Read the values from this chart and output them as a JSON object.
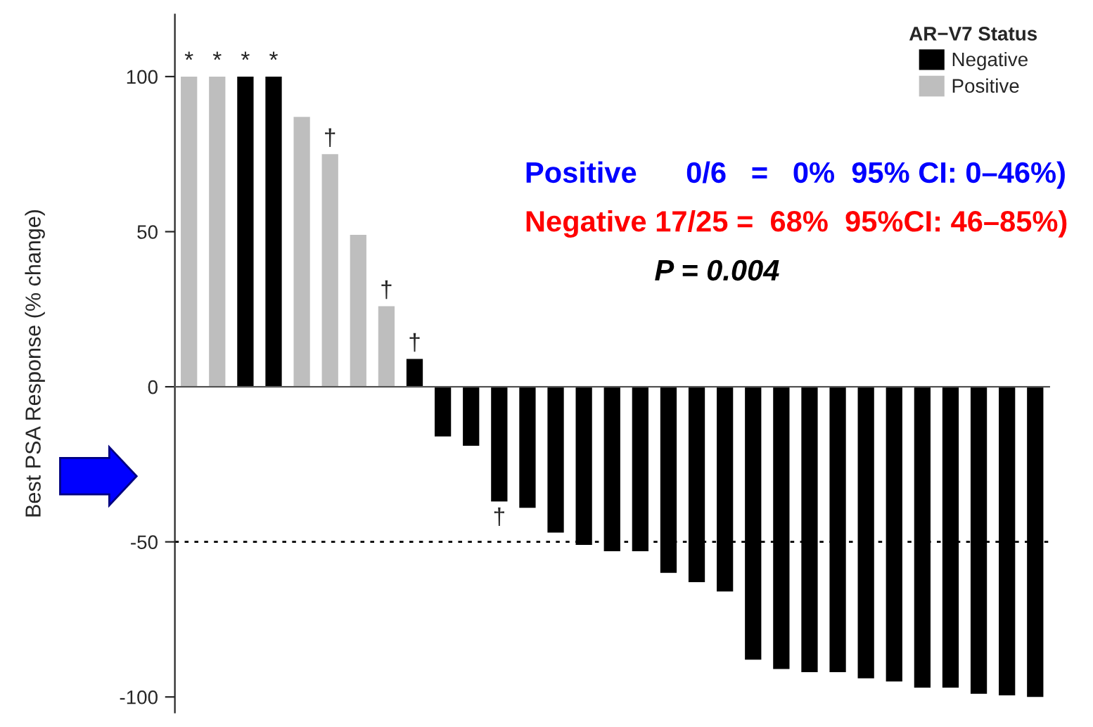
{
  "chart_data": {
    "type": "bar",
    "ylabel": "Best PSA Response (% change)",
    "legend_title": "AR−V7 Status",
    "categories": [
      null,
      null,
      null,
      null,
      null,
      null,
      null,
      null,
      null,
      null,
      null,
      null,
      null,
      null,
      null,
      null,
      null,
      null,
      null,
      null,
      null,
      null,
      null,
      null,
      null,
      null,
      null,
      null,
      null,
      null,
      null
    ],
    "series": [
      {
        "name": "Negative",
        "color": "#000000",
        "values": [
          null,
          null,
          100,
          100,
          null,
          null,
          null,
          null,
          9,
          -16,
          -19,
          -37,
          -39,
          -47,
          -51,
          -53,
          -53,
          -60,
          -63,
          -66,
          -88,
          -91,
          -92,
          -92,
          -94,
          -95,
          -97,
          -97,
          -99,
          -99.5,
          -100
        ],
        "value_labels": [
          null,
          null,
          "*",
          "*",
          null,
          null,
          null,
          null,
          "†",
          null,
          null,
          "†",
          null,
          null,
          null,
          null,
          null,
          null,
          null,
          null,
          null,
          null,
          null,
          null,
          null,
          null,
          null,
          null,
          null,
          null,
          null
        ]
      },
      {
        "name": "Positive",
        "color": "#bebebe",
        "values": [
          100,
          100,
          null,
          null,
          87,
          75,
          49,
          26,
          null,
          null,
          null,
          null,
          null,
          null,
          null,
          null,
          null,
          null,
          null,
          null,
          null,
          null,
          null,
          null,
          null,
          null,
          null,
          null,
          null,
          null,
          null
        ],
        "value_labels": [
          "*",
          "*",
          null,
          null,
          null,
          "†",
          null,
          "†",
          null,
          null,
          null,
          null,
          null,
          null,
          null,
          null,
          null,
          null,
          null,
          null,
          null,
          null,
          null,
          null,
          null,
          null,
          null,
          null,
          null,
          null,
          null
        ]
      }
    ],
    "ylim": [
      -105,
      120
    ],
    "yticks": [
      -100,
      -50,
      0,
      50,
      100
    ],
    "tick_labels": "y",
    "legend": "top right",
    "grid": false,
    "ref_lines": [
      {
        "axis": "y",
        "value": -50,
        "line_style": "dotted",
        "color": "#000000"
      }
    ],
    "annotations": [
      "Positive      0/6   =   0%  95% CI: 0–46%)",
      "Negative 17/25 =  68%  95%CI: 46–85%)",
      "P = 0.004"
    ]
  }
}
